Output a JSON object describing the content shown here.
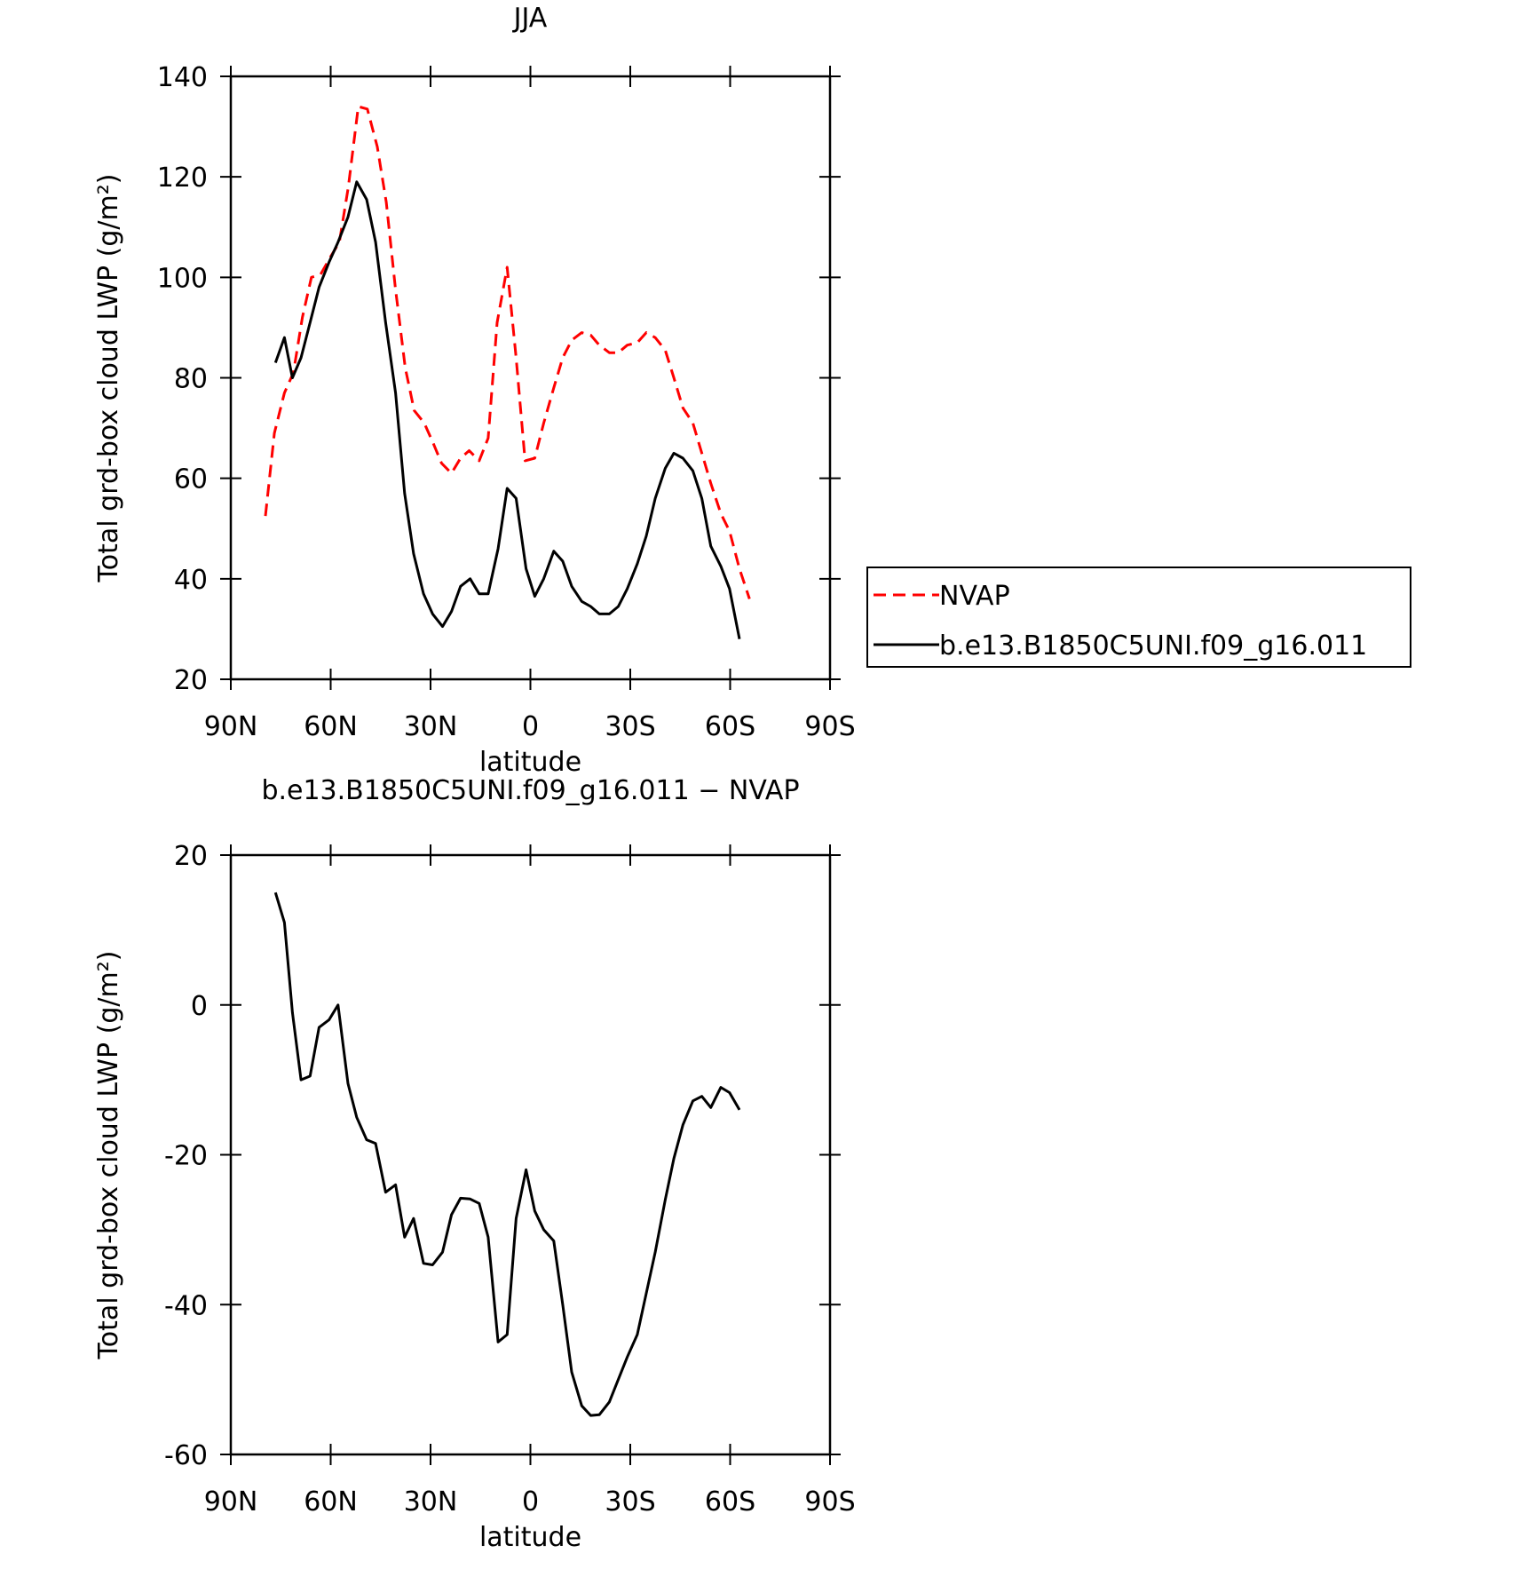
{
  "chart_data": [
    {
      "type": "line",
      "title": "JJA",
      "xlabel": "latitude",
      "ylabel": "Total grd-box cloud LWP (g/m²)",
      "xlim": [
        90,
        -90
      ],
      "xticks": [
        {
          "value": 90,
          "label": "90N"
        },
        {
          "value": 60,
          "label": "60N"
        },
        {
          "value": 30,
          "label": "30N"
        },
        0,
        {
          "value": -30,
          "label": "30S"
        },
        {
          "value": -60,
          "label": "60S"
        },
        {
          "value": -90,
          "label": "90S"
        }
      ],
      "ylim": [
        20,
        140
      ],
      "yticks": [
        20,
        40,
        60,
        80,
        100,
        120,
        140
      ],
      "legend": "right",
      "series": [
        {
          "name": "NVAP",
          "color": "#ff0000",
          "dash": "dashed",
          "x": [
            79.6,
            76.9,
            73.9,
            71.2,
            68.5,
            65.8,
            63.1,
            60.1,
            57.4,
            54.7,
            51.7,
            49.0,
            46.0,
            43.3,
            40.6,
            37.6,
            34.9,
            31.9,
            29.2,
            26.7,
            23.7,
            21.0,
            18.4,
            15.4,
            12.7,
            10.0,
            7.0,
            4.3,
            1.6,
            -1.3,
            -4.0,
            -7.0,
            -9.7,
            -12.4,
            -15.4,
            -18.1,
            -20.7,
            -23.7,
            -26.4,
            -29.1,
            -32.1,
            -34.8,
            -37.5,
            -40.5,
            -43.1,
            -45.8,
            -48.8,
            -51.5,
            -54.2,
            -57.2,
            -59.8,
            -62.8,
            -65.8
          ],
          "values": [
            52.5,
            69,
            77,
            81,
            92,
            100,
            100.5,
            104,
            107,
            118,
            134,
            133.5,
            126,
            115,
            98,
            82,
            73.5,
            71,
            67,
            63,
            61,
            64,
            65.5,
            63.5,
            68,
            91,
            102,
            84,
            63.5,
            64,
            71,
            78,
            84,
            87.5,
            89,
            88.5,
            86.5,
            85,
            85,
            86.5,
            87,
            89,
            88,
            85.5,
            80,
            74,
            71,
            65,
            59,
            53,
            49.5,
            42,
            36
          ]
        },
        {
          "name": "b.e13.B1850C5UNI.f09_g16.011",
          "color": "#000000",
          "dash": "solid",
          "x": [
            76.6,
            73.9,
            71.5,
            68.9,
            66.2,
            63.5,
            60.5,
            57.8,
            54.8,
            52.2,
            49.2,
            46.5,
            43.5,
            40.5,
            37.8,
            35.1,
            32.1,
            29.4,
            26.4,
            23.7,
            21.0,
            18.1,
            15.4,
            12.7,
            9.7,
            7.0,
            4.3,
            1.3,
            -1.3,
            -4.0,
            -7.0,
            -9.7,
            -12.4,
            -15.4,
            -18.1,
            -20.7,
            -23.7,
            -26.4,
            -29.1,
            -32.1,
            -34.8,
            -37.5,
            -40.5,
            -43.1,
            -45.8,
            -48.8,
            -51.5,
            -54.2,
            -57.2,
            -59.8,
            -62.8
          ],
          "values": [
            83,
            88,
            80,
            84,
            91,
            98,
            103,
            107,
            112,
            119,
            115.5,
            107,
            91,
            77,
            57,
            45,
            37,
            33,
            30.5,
            33.5,
            38.5,
            40,
            37,
            37,
            46,
            58,
            56,
            42,
            36.5,
            40,
            45.5,
            43.5,
            38.5,
            35.5,
            34.5,
            33,
            33,
            34.5,
            38,
            43,
            48.5,
            56,
            62,
            65,
            64,
            61.5,
            56,
            46.5,
            42.5,
            38,
            28
          ]
        }
      ]
    },
    {
      "type": "line",
      "title": "b.e13.B1850C5UNI.f09_g16.011 − NVAP",
      "xlabel": "latitude",
      "ylabel": "Total grd-box cloud LWP (g/m²)",
      "xlim": [
        90,
        -90
      ],
      "xticks": [
        {
          "value": 90,
          "label": "90N"
        },
        {
          "value": 60,
          "label": "60N"
        },
        {
          "value": 30,
          "label": "30N"
        },
        0,
        {
          "value": -30,
          "label": "30S"
        },
        {
          "value": -60,
          "label": "60S"
        },
        {
          "value": -90,
          "label": "90S"
        }
      ],
      "ylim": [
        -60,
        20
      ],
      "yticks": [
        -60,
        -40,
        -20,
        0,
        20
      ],
      "color": "#000000",
      "x": [
        76.6,
        73.9,
        71.5,
        68.9,
        66.2,
        63.5,
        60.5,
        57.8,
        54.8,
        52.2,
        49.2,
        46.5,
        43.5,
        40.5,
        37.8,
        35.1,
        32.1,
        29.4,
        26.4,
        23.7,
        21.0,
        18.1,
        15.4,
        12.7,
        9.7,
        7.0,
        4.3,
        1.3,
        -1.3,
        -4.0,
        -7.0,
        -9.7,
        -12.4,
        -15.4,
        -18.1,
        -20.7,
        -23.7,
        -26.4,
        -29.1,
        -32.1,
        -34.8,
        -37.5,
        -40.5,
        -43.1,
        -45.8,
        -48.8,
        -51.5,
        -54.2,
        -57.2,
        -59.8,
        -62.8
      ],
      "values": [
        15,
        11,
        -1,
        -10,
        -9.5,
        -3,
        -2,
        0,
        -10.5,
        -15,
        -18,
        -18.5,
        -25,
        -24,
        -31,
        -28.5,
        -34.5,
        -34.7,
        -33,
        -28,
        -25.8,
        -25.9,
        -26.5,
        -31,
        -45,
        -44,
        -28.5,
        -22,
        -27.5,
        -30,
        -31.5,
        -40,
        -49,
        -53.5,
        -54.8,
        -54.7,
        -53,
        -50,
        -47,
        -44,
        -38.5,
        -33,
        -26,
        -20.5,
        -16,
        -12.8,
        -12.2,
        -13.7,
        -11,
        -11.7,
        -14
      ]
    }
  ]
}
